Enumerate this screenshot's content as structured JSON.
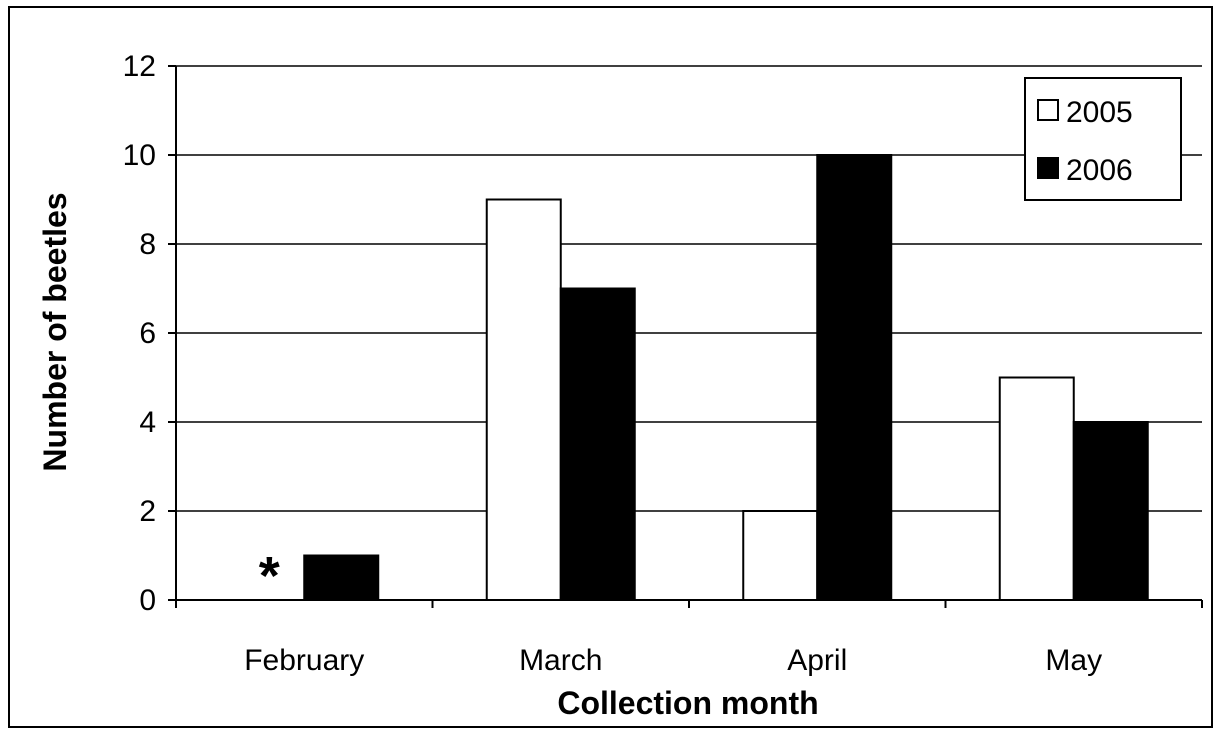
{
  "chart_data": {
    "type": "bar",
    "categories": [
      "February",
      "March",
      "April",
      "May"
    ],
    "series": [
      {
        "name": "2005",
        "values": [
          null,
          9,
          2,
          5
        ],
        "color": "#ffffff"
      },
      {
        "name": "2006",
        "values": [
          1,
          7,
          10,
          4
        ],
        "color": "#000000"
      }
    ],
    "xlabel": "Collection month",
    "ylabel": "Number of beetles",
    "ylim": [
      0,
      12
    ],
    "yticks": [
      0,
      2,
      4,
      6,
      8,
      10,
      12
    ],
    "grid": true,
    "legend_position": "top-right",
    "annotations": [
      {
        "category": "February",
        "series": "2005",
        "text": "*"
      }
    ]
  }
}
